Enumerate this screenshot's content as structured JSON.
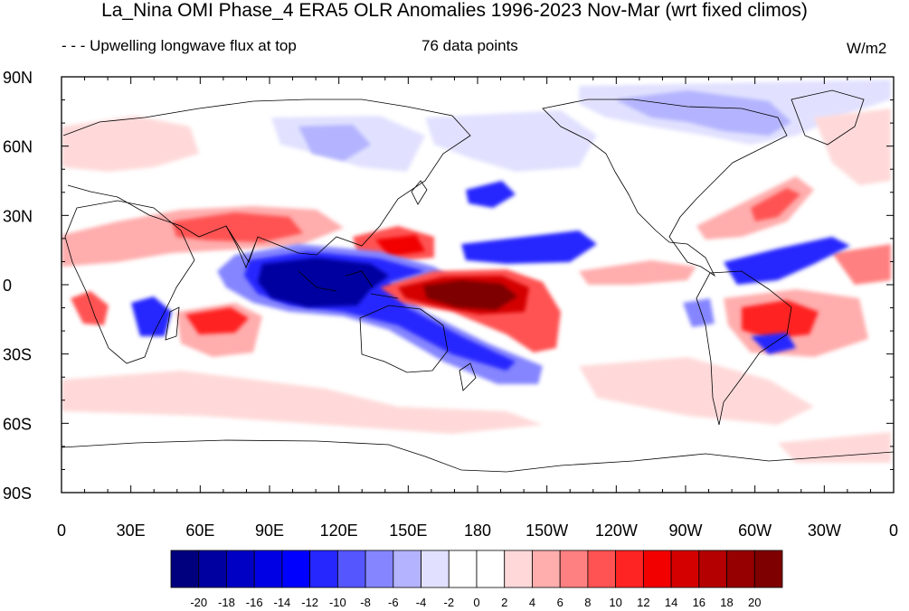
{
  "figure": {
    "title": "La_Nina OMI Phase_4 ERA5 OLR Anomalies 1996-2023 Nov-Mar (wrt fixed climos)",
    "left_string": "- - - Upwelling longwave flux at top",
    "center_string": "76 data points",
    "units": "W/m2"
  },
  "map": {
    "projection": "cylindrical equidistant",
    "lat_range": [
      -90,
      90
    ],
    "lon_range": [
      0,
      360
    ],
    "lat_ticks": [
      "90N",
      "60N",
      "30N",
      "0",
      "30S",
      "60S",
      "90S"
    ],
    "lon_ticks": [
      "0",
      "30E",
      "60E",
      "90E",
      "120E",
      "150E",
      "180",
      "150W",
      "120W",
      "90W",
      "60W",
      "30W",
      "0"
    ],
    "features": [
      {
        "name": "Maritime Continent / E Indian Ocean",
        "anomaly": "strong negative"
      },
      {
        "name": "Central equatorial Pacific near dateline",
        "anomaly": "strong positive"
      },
      {
        "name": "South Pacific Convergence Zone",
        "anomaly": "negative"
      },
      {
        "name": "Tropical North Atlantic",
        "anomaly": "negative"
      },
      {
        "name": "Subtropical South America",
        "anomaly": "positive"
      },
      {
        "name": "South Indian Ocean 10-25S",
        "anomaly": "positive"
      }
    ]
  },
  "colorbar": {
    "labels": [
      "-20",
      "-18",
      "-16",
      "-14",
      "-12",
      "-10",
      "-8",
      "-6",
      "-4",
      "-2",
      "0",
      "2",
      "4",
      "6",
      "8",
      "10",
      "12",
      "14",
      "16",
      "18",
      "20"
    ],
    "colors": [
      "#00007e",
      "#0000a0",
      "#0000c4",
      "#0000e4",
      "#0000ff",
      "#2626ff",
      "#5656ff",
      "#8585ff",
      "#b3b3ff",
      "#e1e1ff",
      "#ffffff",
      "#ffffff",
      "#ffd9d9",
      "#ffadad",
      "#ff8080",
      "#ff5252",
      "#ff2424",
      "#f20000",
      "#d40000",
      "#b40000",
      "#960000",
      "#7e0000"
    ]
  }
}
